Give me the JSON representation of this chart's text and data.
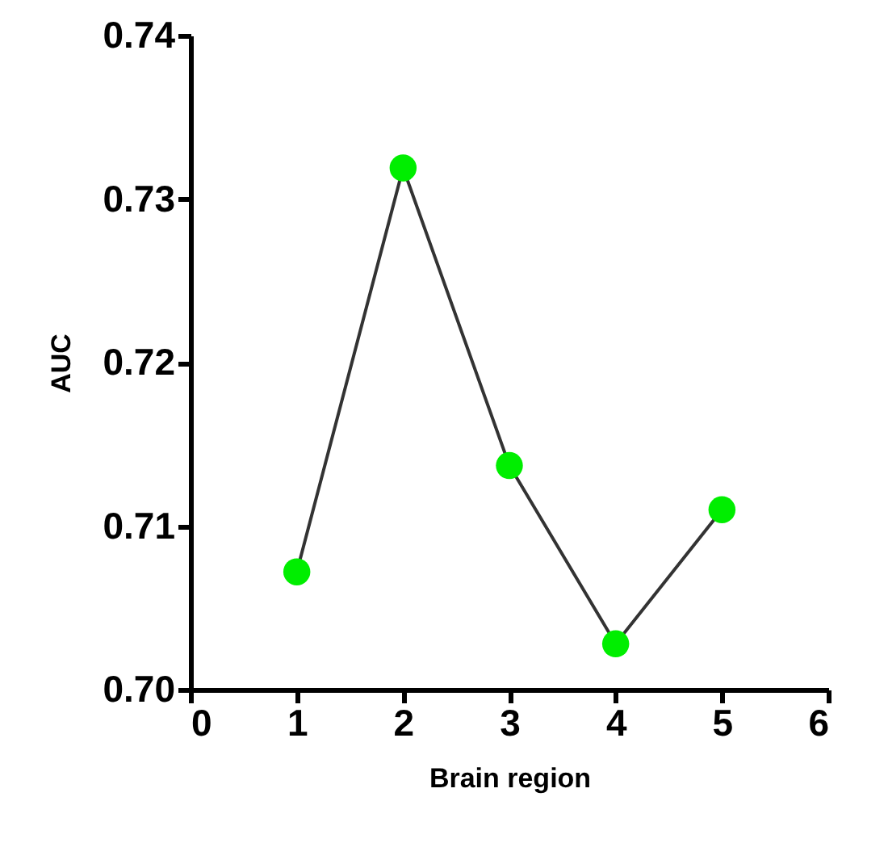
{
  "chart_data": {
    "type": "line",
    "xlabel": "Brain region",
    "ylabel": "AUC",
    "x": [
      1,
      2,
      3,
      4,
      5
    ],
    "series": [
      {
        "color": "#00ee00",
        "values": [
          0.7072,
          0.7319,
          0.7137,
          0.7028,
          0.711
        ]
      }
    ],
    "xlim": [
      0,
      6
    ],
    "xticks": [
      0,
      1,
      2,
      3,
      4,
      5,
      6
    ],
    "ylim": [
      0.7,
      0.74
    ],
    "yticks": [
      {
        "value": 0.7,
        "label": "0.70"
      },
      {
        "value": 0.71,
        "label": "0.71"
      },
      {
        "value": 0.72,
        "label": "0.72"
      },
      {
        "value": 0.73,
        "label": "0.73"
      },
      {
        "value": 0.74,
        "label": "0.74"
      }
    ],
    "grid": false,
    "marker": "circle",
    "line_style": "solid",
    "legend": false
  }
}
